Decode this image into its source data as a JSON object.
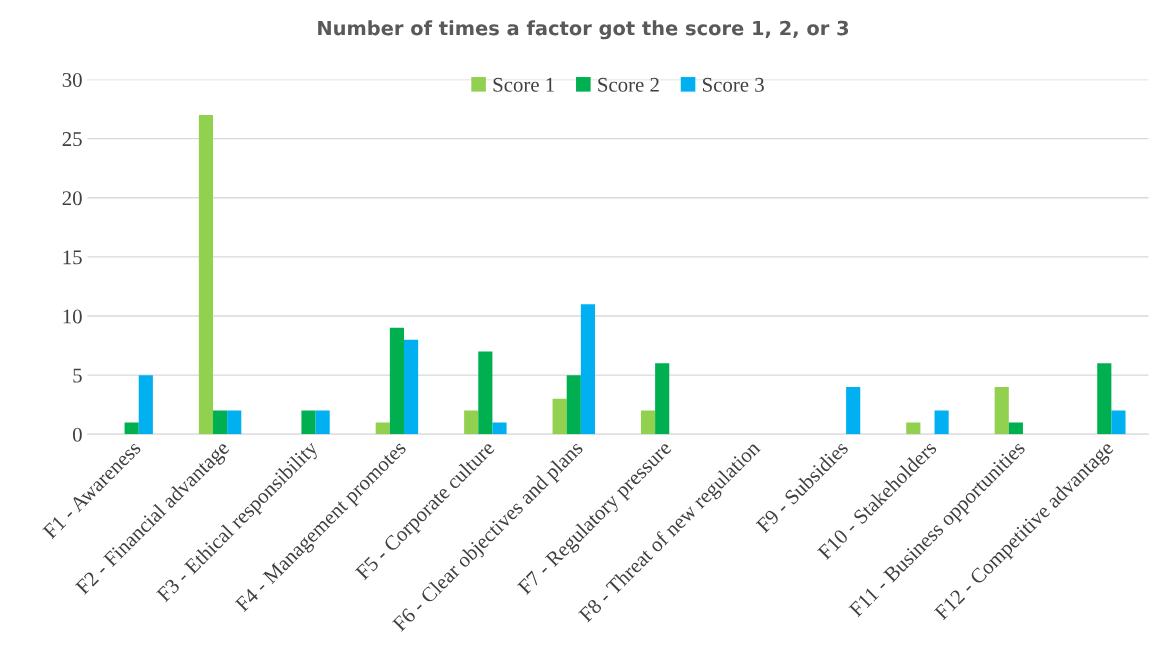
{
  "chart_data": {
    "type": "bar",
    "title": "Number of times a factor got the score 1, 2, or 3",
    "categories": [
      "F1 - Awareness",
      "F2 - Financial advantage",
      "F3 - Ethical responsibility",
      "F4 - Management promotes",
      "F5 - Corporate culture",
      "F6 - Clear objectives and plans",
      "F7 - Regulatory pressure",
      "F8 - Threat of new regulation",
      "F9 - Subsidies",
      "F10 - Stakeholders",
      "F11 - Business opportunities",
      "F12 - Competitive advantage"
    ],
    "series": [
      {
        "name": "Score 1",
        "color": "#92d050",
        "values": [
          0,
          27,
          0,
          1,
          2,
          3,
          2,
          0,
          0,
          1,
          4,
          0
        ]
      },
      {
        "name": "Score 2",
        "color": "#00b050",
        "values": [
          1,
          2,
          2,
          9,
          7,
          5,
          6,
          0,
          0,
          0,
          1,
          6
        ]
      },
      {
        "name": "Score 3",
        "color": "#00b0f0",
        "values": [
          5,
          2,
          2,
          8,
          1,
          11,
          0,
          0,
          4,
          2,
          0,
          2
        ]
      }
    ],
    "ylim": [
      0,
      30
    ],
    "yticks": [
      0,
      5,
      10,
      15,
      20,
      25,
      30
    ],
    "grid": "y",
    "legend": "top"
  }
}
